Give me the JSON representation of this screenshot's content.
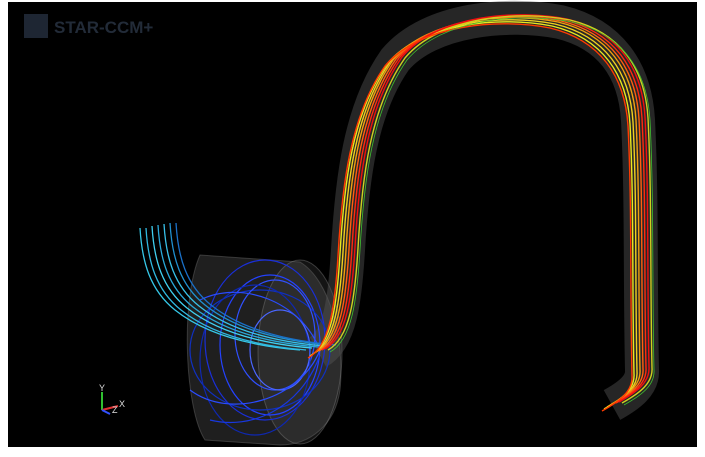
{
  "app": {
    "logo": "STAR-CCM+"
  },
  "axes": {
    "x": "X",
    "y": "Y",
    "z": "Z"
  }
}
